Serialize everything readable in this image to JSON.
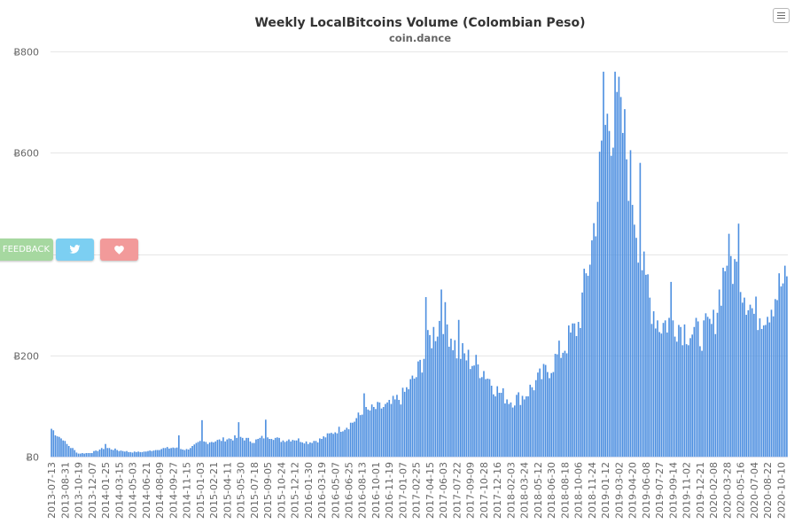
{
  "chart_data": {
    "type": "bar",
    "title": "Weekly LocalBitcoins Volume (Colombian Peso)",
    "subtitle": "coin.dance",
    "xlabel": "",
    "ylabel": "",
    "ylim": [
      0,
      800
    ],
    "yticks": [
      "Ƀ0",
      "Ƀ200",
      "Ƀ400",
      "Ƀ600",
      "Ƀ800"
    ],
    "ytick_values": [
      0,
      200,
      400,
      600,
      800
    ],
    "grid": true,
    "bar_color": "#4d8fe0",
    "x_labels": [
      "2013-07-13",
      "2013-08-31",
      "2013-10-19",
      "2013-12-07",
      "2014-01-25",
      "2014-03-15",
      "2014-05-03",
      "2014-06-21",
      "2014-08-09",
      "2014-09-27",
      "2014-11-15",
      "2015-01-03",
      "2015-02-21",
      "2015-04-11",
      "2015-05-30",
      "2015-07-18",
      "2015-09-05",
      "2015-10-24",
      "2015-12-12",
      "2016-01-30",
      "2016-03-19",
      "2016-05-07",
      "2016-06-25",
      "2016-08-13",
      "2016-10-01",
      "2016-11-19",
      "2017-01-07",
      "2017-02-25",
      "2017-04-15",
      "2017-06-03",
      "2017-07-22",
      "2017-09-09",
      "2017-10-28",
      "2017-12-16",
      "2018-02-03",
      "2018-03-24",
      "2018-05-12",
      "2018-06-30",
      "2018-08-18",
      "2018-10-06",
      "2018-11-24",
      "2019-01-12",
      "2019-03-02",
      "2019-04-20",
      "2019-06-08",
      "2019-07-27",
      "2019-09-14",
      "2019-11-02",
      "2019-12-21",
      "2020-02-08",
      "2020-03-28",
      "2020-05-16",
      "2020-07-04",
      "2020-08-22",
      "2020-10-10"
    ],
    "anchors": [
      [
        "2013-07-13",
        55
      ],
      [
        "2013-08-31",
        28
      ],
      [
        "2013-10-19",
        6
      ],
      [
        "2013-12-07",
        8
      ],
      [
        "2014-01-25",
        18
      ],
      [
        "2014-03-15",
        12
      ],
      [
        "2014-05-03",
        9
      ],
      [
        "2014-06-21",
        10
      ],
      [
        "2014-08-09",
        15
      ],
      [
        "2014-09-27",
        18
      ],
      [
        "2014-11-15",
        14
      ],
      [
        "2015-01-03",
        28
      ],
      [
        "2015-02-21",
        30
      ],
      [
        "2015-04-11",
        35
      ],
      [
        "2015-05-30",
        38
      ],
      [
        "2015-07-18",
        30
      ],
      [
        "2015-09-05",
        42
      ],
      [
        "2015-10-24",
        32
      ],
      [
        "2015-12-12",
        35
      ],
      [
        "2016-01-30",
        28
      ],
      [
        "2016-03-19",
        35
      ],
      [
        "2016-05-07",
        50
      ],
      [
        "2016-06-25",
        62
      ],
      [
        "2016-08-13",
        85
      ],
      [
        "2016-10-01",
        95
      ],
      [
        "2016-11-19",
        100
      ],
      [
        "2017-01-07",
        120
      ],
      [
        "2017-02-25",
        160
      ],
      [
        "2017-04-15",
        230
      ],
      [
        "2017-06-03",
        280
      ],
      [
        "2017-07-22",
        210
      ],
      [
        "2017-09-09",
        190
      ],
      [
        "2017-10-28",
        170
      ],
      [
        "2017-12-16",
        130
      ],
      [
        "2018-02-03",
        110
      ],
      [
        "2018-03-24",
        120
      ],
      [
        "2018-05-12",
        150
      ],
      [
        "2018-06-30",
        180
      ],
      [
        "2018-08-18",
        220
      ],
      [
        "2018-10-06",
        260
      ],
      [
        "2018-11-24",
        420
      ],
      [
        "2019-01-12",
        650
      ],
      [
        "2019-03-02",
        700
      ],
      [
        "2019-04-20",
        520
      ],
      [
        "2019-06-08",
        330
      ],
      [
        "2019-07-27",
        260
      ],
      [
        "2019-09-14",
        270
      ],
      [
        "2019-11-02",
        250
      ],
      [
        "2019-12-21",
        240
      ],
      [
        "2020-02-08",
        260
      ],
      [
        "2020-03-28",
        400
      ],
      [
        "2020-05-16",
        350
      ],
      [
        "2020-07-04",
        280
      ],
      [
        "2020-08-22",
        290
      ],
      [
        "2020-10-10",
        340
      ]
    ],
    "spikes": [
      [
        "2019-01-05",
        760
      ],
      [
        "2019-02-16",
        760
      ],
      [
        "2019-02-23",
        720
      ],
      [
        "2019-03-09",
        710
      ],
      [
        "2019-05-18",
        580
      ],
      [
        "2019-06-15",
        360
      ],
      [
        "2019-09-07",
        345
      ],
      [
        "2020-04-04",
        440
      ],
      [
        "2020-05-09",
        460
      ],
      [
        "2017-05-27",
        330
      ],
      [
        "2017-04-01",
        315
      ],
      [
        "2017-07-29",
        270
      ],
      [
        "2016-08-20",
        125
      ],
      [
        "2015-01-10",
        72
      ],
      [
        "2015-05-23",
        68
      ],
      [
        "2015-08-29",
        73
      ],
      [
        "2013-08-24",
        32
      ],
      [
        "2014-01-25",
        25
      ],
      [
        "2014-10-18",
        42
      ]
    ],
    "noise_pct": 0.14
  },
  "ui": {
    "menu_icon": "hamburger-menu-icon",
    "feedback_label": "FEEDBACK",
    "twitter_icon": "twitter-bird-icon",
    "heart_icon": "heart-icon",
    "colors": {
      "feedback": "#a6d8a0",
      "twitter": "#7ccff2",
      "heart": "#f29a9a"
    }
  }
}
